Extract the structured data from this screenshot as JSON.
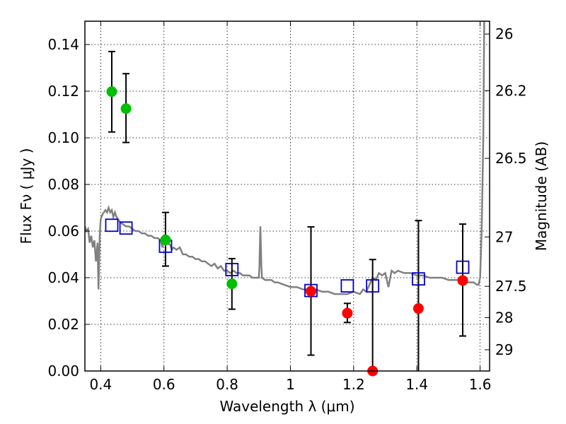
{
  "chart_data": {
    "type": "scatter",
    "title": "",
    "xlabel": "Wavelength  λ (μm)",
    "ylabel": "Flux  Fν  ( μJy )",
    "ylabel_right": "Magnitude (AB)",
    "xlim": [
      0.35,
      1.63
    ],
    "ylim": [
      0.0,
      0.15
    ],
    "grid": true,
    "x_ticks": [
      0.4,
      0.6,
      0.8,
      1.0,
      1.2,
      1.4,
      1.6
    ],
    "x_tick_labels": [
      "0.4",
      "0.6",
      "0.8",
      "1",
      "1.2",
      "1.4",
      "1.6"
    ],
    "y_ticks": [
      0.0,
      0.02,
      0.04,
      0.06,
      0.08,
      0.1,
      0.12,
      0.14
    ],
    "y_tick_labels": [
      "0.00",
      "0.02",
      "0.04",
      "0.06",
      "0.08",
      "0.10",
      "0.12",
      "0.14"
    ],
    "right_ticks": [
      {
        "label": "26",
        "flux": 0.1445
      },
      {
        "label": "26.2",
        "flux": 0.1202
      },
      {
        "label": "26.5",
        "flux": 0.0912
      },
      {
        "label": "27",
        "flux": 0.0575
      },
      {
        "label": "27.5",
        "flux": 0.0363
      },
      {
        "label": "28",
        "flux": 0.0229
      },
      {
        "label": "29",
        "flux": 0.0091
      }
    ],
    "colors": {
      "detection": "#00bf00",
      "upper_limit": "#ff0000",
      "model_box": "#0000cc",
      "sed_line": "#808080",
      "error_bar": "#000000"
    },
    "series": [
      {
        "kind": "green_points",
        "points": [
          {
            "x": 0.435,
            "y": 0.1198,
            "ylo": 0.1025,
            "yhi": 0.137
          },
          {
            "x": 0.48,
            "y": 0.1125,
            "ylo": 0.098,
            "yhi": 0.1275
          },
          {
            "x": 0.605,
            "y": 0.0562,
            "ylo": 0.045,
            "yhi": 0.068
          },
          {
            "x": 0.815,
            "y": 0.0374,
            "ylo": 0.0265,
            "yhi": 0.0482
          }
        ]
      },
      {
        "kind": "red_points",
        "points": [
          {
            "x": 1.065,
            "y": 0.0342,
            "ylo": 0.0068,
            "yhi": 0.0618
          },
          {
            "x": 1.18,
            "y": 0.0248,
            "ylo": 0.0208,
            "yhi": 0.029
          },
          {
            "x": 1.26,
            "y": 0.0,
            "ylo": 0.0,
            "yhi": 0.0478
          },
          {
            "x": 1.405,
            "y": 0.0268,
            "ylo": 0.0,
            "yhi": 0.0645
          },
          {
            "x": 1.545,
            "y": 0.0388,
            "ylo": 0.015,
            "yhi": 0.063
          }
        ]
      },
      {
        "kind": "model_boxes",
        "points": [
          {
            "x": 0.435,
            "y": 0.0625
          },
          {
            "x": 0.48,
            "y": 0.0613
          },
          {
            "x": 0.605,
            "y": 0.0535
          },
          {
            "x": 0.815,
            "y": 0.0435
          },
          {
            "x": 1.065,
            "y": 0.0345
          },
          {
            "x": 1.18,
            "y": 0.0365
          },
          {
            "x": 1.26,
            "y": 0.0365
          },
          {
            "x": 1.405,
            "y": 0.0395
          },
          {
            "x": 1.545,
            "y": 0.0445
          }
        ]
      },
      {
        "kind": "sed_line",
        "points": [
          [
            0.35,
            0.062
          ],
          [
            0.355,
            0.06
          ],
          [
            0.36,
            0.061
          ],
          [
            0.365,
            0.055
          ],
          [
            0.37,
            0.058
          ],
          [
            0.375,
            0.053
          ],
          [
            0.38,
            0.056
          ],
          [
            0.385,
            0.047
          ],
          [
            0.39,
            0.055
          ],
          [
            0.393,
            0.035
          ],
          [
            0.397,
            0.058
          ],
          [
            0.4,
            0.065
          ],
          [
            0.405,
            0.067
          ],
          [
            0.41,
            0.068
          ],
          [
            0.415,
            0.069
          ],
          [
            0.42,
            0.068
          ],
          [
            0.425,
            0.07
          ],
          [
            0.43,
            0.068
          ],
          [
            0.435,
            0.069
          ],
          [
            0.44,
            0.066
          ],
          [
            0.445,
            0.068
          ],
          [
            0.45,
            0.066
          ],
          [
            0.455,
            0.065
          ],
          [
            0.46,
            0.064
          ],
          [
            0.47,
            0.063
          ],
          [
            0.48,
            0.062
          ],
          [
            0.49,
            0.062
          ],
          [
            0.5,
            0.061
          ],
          [
            0.51,
            0.06
          ],
          [
            0.52,
            0.06
          ],
          [
            0.53,
            0.059
          ],
          [
            0.54,
            0.059
          ],
          [
            0.55,
            0.058
          ],
          [
            0.56,
            0.058
          ],
          [
            0.57,
            0.057
          ],
          [
            0.58,
            0.057
          ],
          [
            0.59,
            0.056
          ],
          [
            0.595,
            0.053
          ],
          [
            0.6,
            0.056
          ],
          [
            0.61,
            0.055
          ],
          [
            0.62,
            0.054
          ],
          [
            0.625,
            0.052
          ],
          [
            0.63,
            0.053
          ],
          [
            0.64,
            0.052
          ],
          [
            0.65,
            0.053
          ],
          [
            0.66,
            0.05
          ],
          [
            0.67,
            0.05
          ],
          [
            0.68,
            0.049
          ],
          [
            0.69,
            0.049
          ],
          [
            0.7,
            0.048
          ],
          [
            0.71,
            0.048
          ],
          [
            0.72,
            0.047
          ],
          [
            0.73,
            0.047
          ],
          [
            0.74,
            0.046
          ],
          [
            0.75,
            0.045
          ],
          [
            0.76,
            0.046
          ],
          [
            0.77,
            0.044
          ],
          [
            0.78,
            0.045
          ],
          [
            0.79,
            0.043
          ],
          [
            0.8,
            0.043
          ],
          [
            0.81,
            0.042
          ],
          [
            0.82,
            0.043
          ],
          [
            0.83,
            0.042
          ],
          [
            0.84,
            0.042
          ],
          [
            0.85,
            0.041
          ],
          [
            0.86,
            0.041
          ],
          [
            0.87,
            0.041
          ],
          [
            0.88,
            0.04
          ],
          [
            0.89,
            0.04
          ],
          [
            0.9,
            0.04
          ],
          [
            0.902,
            0.045
          ],
          [
            0.905,
            0.062
          ],
          [
            0.908,
            0.045
          ],
          [
            0.91,
            0.04
          ],
          [
            0.92,
            0.039
          ],
          [
            0.93,
            0.039
          ],
          [
            0.94,
            0.039
          ],
          [
            0.95,
            0.038
          ],
          [
            0.96,
            0.038
          ],
          [
            0.98,
            0.037
          ],
          [
            1.0,
            0.036
          ],
          [
            1.02,
            0.036
          ],
          [
            1.04,
            0.035
          ],
          [
            1.06,
            0.035
          ],
          [
            1.08,
            0.035
          ],
          [
            1.1,
            0.034
          ],
          [
            1.12,
            0.034
          ],
          [
            1.14,
            0.033
          ],
          [
            1.16,
            0.033
          ],
          [
            1.18,
            0.033
          ],
          [
            1.2,
            0.034
          ],
          [
            1.22,
            0.033
          ],
          [
            1.23,
            0.035
          ],
          [
            1.24,
            0.034
          ],
          [
            1.25,
            0.037
          ],
          [
            1.26,
            0.04
          ],
          [
            1.27,
            0.039
          ],
          [
            1.28,
            0.042
          ],
          [
            1.29,
            0.041
          ],
          [
            1.3,
            0.042
          ],
          [
            1.31,
            0.036
          ],
          [
            1.32,
            0.043
          ],
          [
            1.33,
            0.042
          ],
          [
            1.34,
            0.043
          ],
          [
            1.36,
            0.042
          ],
          [
            1.38,
            0.042
          ],
          [
            1.4,
            0.041
          ],
          [
            1.42,
            0.041
          ],
          [
            1.44,
            0.04
          ],
          [
            1.46,
            0.04
          ],
          [
            1.48,
            0.04
          ],
          [
            1.5,
            0.039
          ],
          [
            1.52,
            0.039
          ],
          [
            1.54,
            0.039
          ],
          [
            1.56,
            0.038
          ],
          [
            1.57,
            0.038
          ],
          [
            1.58,
            0.038
          ],
          [
            1.59,
            0.037
          ],
          [
            1.595,
            0.037
          ],
          [
            1.6,
            0.04
          ],
          [
            1.605,
            0.06
          ],
          [
            1.61,
            0.1
          ],
          [
            1.613,
            0.15
          ]
        ]
      }
    ]
  }
}
